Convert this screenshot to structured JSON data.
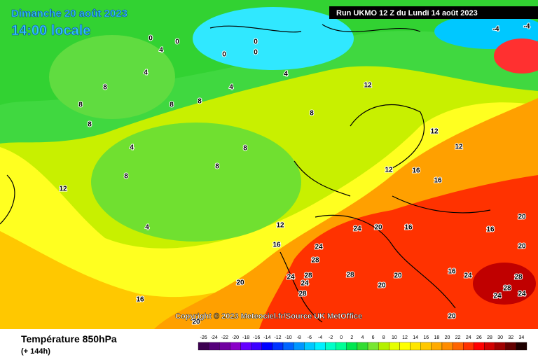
{
  "header": {
    "date": "Dimanche 20 août 2023",
    "time": "14:00 locale",
    "run": "Run UKMO 12 Z du Lundi 14 août 2023"
  },
  "copyright": "Copyright © 2023 Meteociel.fr/Source UK MetOffice",
  "footer": {
    "title": "Température 850hPa",
    "subtitle": "(+ 144h)"
  },
  "legend": {
    "ticks": [
      -26,
      -24,
      -22,
      -20,
      -18,
      -16,
      -14,
      -12,
      -10,
      -8,
      -6,
      -4,
      -2,
      0,
      2,
      4,
      6,
      8,
      10,
      12,
      14,
      16,
      18,
      20,
      22,
      24,
      26,
      28,
      30,
      32,
      34
    ],
    "colors": [
      "#3c0050",
      "#55007a",
      "#7000a0",
      "#8a00c8",
      "#6400ff",
      "#3c00ff",
      "#0000ff",
      "#0032ff",
      "#0064ff",
      "#0096ff",
      "#00c8ff",
      "#00f0ff",
      "#00ffc8",
      "#00ff96",
      "#00e650",
      "#32dc32",
      "#78e632",
      "#b4f000",
      "#e6ff00",
      "#ffff00",
      "#ffe600",
      "#ffc800",
      "#ffaa00",
      "#ff8c00",
      "#ff6400",
      "#ff3200",
      "#ff0000",
      "#d20000",
      "#a00000",
      "#640000",
      "#1e0000"
    ]
  },
  "map_labels": [
    0,
    0,
    0,
    0,
    0,
    4,
    4,
    4,
    4,
    4,
    4,
    -4,
    -4,
    8,
    8,
    8,
    8,
    8,
    8,
    8,
    8,
    8,
    12,
    12,
    12,
    12,
    12,
    12,
    16,
    16,
    16,
    16,
    16,
    16,
    16,
    20,
    20,
    20,
    20,
    20,
    20,
    20,
    20,
    24,
    24,
    24,
    24,
    24,
    24,
    24,
    28,
    28,
    28,
    28,
    28,
    28
  ]
}
